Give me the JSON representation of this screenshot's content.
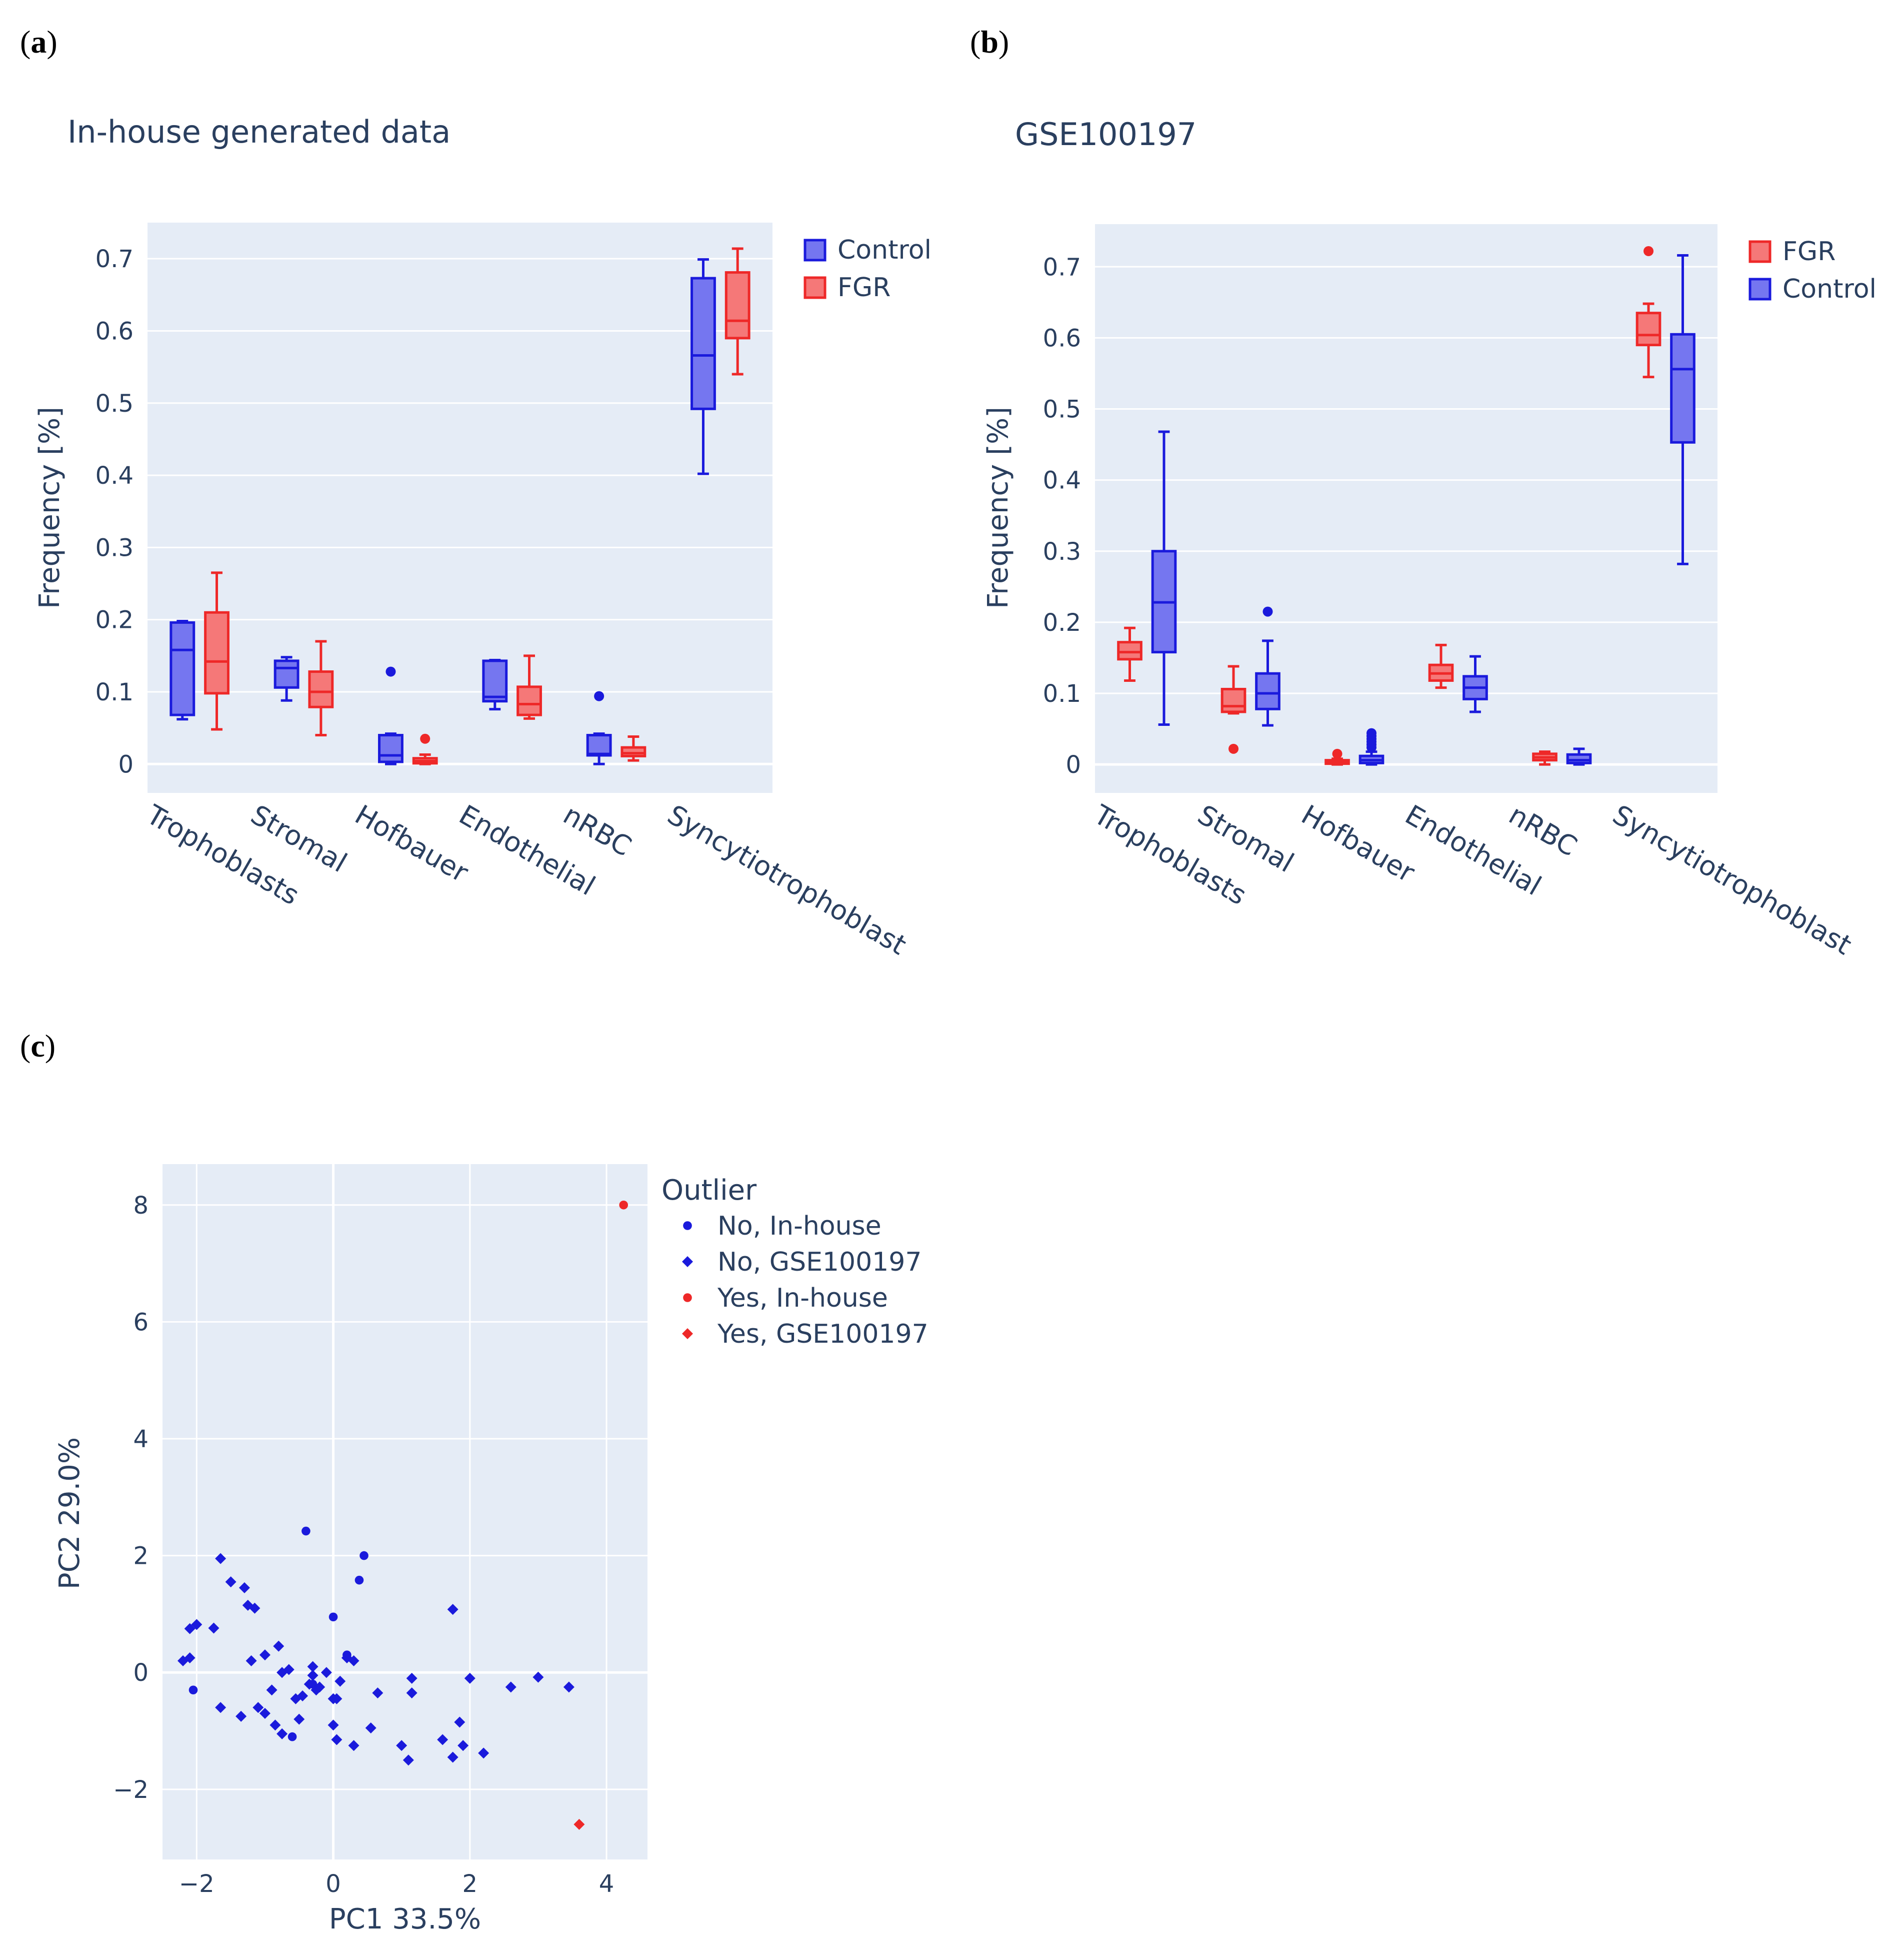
{
  "panels": {
    "a": {
      "label": "a"
    },
    "b": {
      "label": "b"
    },
    "c": {
      "label": "c"
    }
  },
  "colors": {
    "control": "#1a1adc",
    "control_fill": "#7576f0",
    "fgr": "#ee2828",
    "fgr_fill": "#f57878",
    "plot_bg": "#e5ecf6",
    "grid": "#ffffff"
  },
  "chart_data": [
    {
      "id": "a",
      "type": "box",
      "title": "In-house generated data",
      "ylabel": "Frequency [%]",
      "xlabel": "",
      "ylim": [
        -0.04,
        0.75
      ],
      "yticks": [
        0,
        0.1,
        0.2,
        0.3,
        0.4,
        0.5,
        0.6,
        0.7
      ],
      "ytick_labels": [
        "0",
        "0.1",
        "0.2",
        "0.3",
        "0.4",
        "0.5",
        "0.6",
        "0.7"
      ],
      "categories": [
        "Trophoblasts",
        "Stromal",
        "Hofbauer",
        "Endothelial",
        "nRBC",
        "Syncytiotrophoblast"
      ],
      "legend": [
        "Control",
        "FGR"
      ],
      "series": [
        {
          "name": "Control",
          "color_key": "control",
          "boxes": [
            {
              "min": 0.062,
              "q1": 0.068,
              "median": 0.158,
              "q3": 0.196,
              "max": 0.198,
              "outliers": []
            },
            {
              "min": 0.088,
              "q1": 0.106,
              "median": 0.133,
              "q3": 0.143,
              "max": 0.148,
              "outliers": []
            },
            {
              "min": 0.0,
              "q1": 0.003,
              "median": 0.012,
              "q3": 0.04,
              "max": 0.042,
              "outliers": [
                0.128
              ]
            },
            {
              "min": 0.076,
              "q1": 0.087,
              "median": 0.093,
              "q3": 0.143,
              "max": 0.144,
              "outliers": []
            },
            {
              "min": 0.0,
              "q1": 0.012,
              "median": 0.014,
              "q3": 0.04,
              "max": 0.042,
              "outliers": [
                0.094
              ]
            },
            {
              "min": 0.402,
              "q1": 0.492,
              "median": 0.566,
              "q3": 0.673,
              "max": 0.699,
              "outliers": []
            }
          ]
        },
        {
          "name": "FGR",
          "color_key": "fgr",
          "boxes": [
            {
              "min": 0.048,
              "q1": 0.098,
              "median": 0.142,
              "q3": 0.21,
              "max": 0.265,
              "outliers": []
            },
            {
              "min": 0.04,
              "q1": 0.079,
              "median": 0.1,
              "q3": 0.128,
              "max": 0.17,
              "outliers": []
            },
            {
              "min": 0.0,
              "q1": 0.001,
              "median": 0.004,
              "q3": 0.008,
              "max": 0.013,
              "outliers": [
                0.035
              ]
            },
            {
              "min": 0.063,
              "q1": 0.068,
              "median": 0.083,
              "q3": 0.107,
              "max": 0.15,
              "outliers": []
            },
            {
              "min": 0.005,
              "q1": 0.011,
              "median": 0.015,
              "q3": 0.023,
              "max": 0.038,
              "outliers": []
            },
            {
              "min": 0.54,
              "q1": 0.59,
              "median": 0.614,
              "q3": 0.681,
              "max": 0.714,
              "outliers": []
            }
          ]
        }
      ]
    },
    {
      "id": "b",
      "type": "box",
      "title": "GSE100197",
      "ylabel": "Frequency [%]",
      "xlabel": "",
      "ylim": [
        -0.04,
        0.76
      ],
      "yticks": [
        0,
        0.1,
        0.2,
        0.3,
        0.4,
        0.5,
        0.6,
        0.7
      ],
      "ytick_labels": [
        "0",
        "0.1",
        "0.2",
        "0.3",
        "0.4",
        "0.5",
        "0.6",
        "0.7"
      ],
      "categories": [
        "Trophoblasts",
        "Stromal",
        "Hofbauer",
        "Endothelial",
        "nRBC",
        "Syncytiotrophoblast"
      ],
      "legend": [
        "FGR",
        "Control"
      ],
      "series": [
        {
          "name": "FGR",
          "color_key": "fgr",
          "boxes": [
            {
              "min": 0.118,
              "q1": 0.148,
              "median": 0.158,
              "q3": 0.172,
              "max": 0.192,
              "outliers": []
            },
            {
              "min": 0.072,
              "q1": 0.074,
              "median": 0.082,
              "q3": 0.106,
              "max": 0.138,
              "outliers": [
                0.022
              ]
            },
            {
              "min": 0.0,
              "q1": 0.001,
              "median": 0.003,
              "q3": 0.006,
              "max": 0.008,
              "outliers": [
                0.015
              ]
            },
            {
              "min": 0.108,
              "q1": 0.118,
              "median": 0.128,
              "q3": 0.14,
              "max": 0.168,
              "outliers": []
            },
            {
              "min": 0.0,
              "q1": 0.006,
              "median": 0.01,
              "q3": 0.015,
              "max": 0.018,
              "outliers": []
            },
            {
              "min": 0.545,
              "q1": 0.59,
              "median": 0.604,
              "q3": 0.635,
              "max": 0.648,
              "outliers": [
                0.722
              ]
            }
          ]
        },
        {
          "name": "Control",
          "color_key": "control",
          "boxes": [
            {
              "min": 0.056,
              "q1": 0.158,
              "median": 0.228,
              "q3": 0.3,
              "max": 0.468,
              "outliers": []
            },
            {
              "min": 0.055,
              "q1": 0.078,
              "median": 0.1,
              "q3": 0.128,
              "max": 0.174,
              "outliers": [
                0.215
              ]
            },
            {
              "min": 0.0,
              "q1": 0.002,
              "median": 0.006,
              "q3": 0.012,
              "max": 0.018,
              "outliers": [
                0.024,
                0.028,
                0.032,
                0.036,
                0.04,
                0.044
              ]
            },
            {
              "min": 0.074,
              "q1": 0.092,
              "median": 0.108,
              "q3": 0.124,
              "max": 0.152,
              "outliers": []
            },
            {
              "min": 0.0,
              "q1": 0.002,
              "median": 0.006,
              "q3": 0.014,
              "max": 0.022,
              "outliers": []
            },
            {
              "min": 0.282,
              "q1": 0.453,
              "median": 0.556,
              "q3": 0.605,
              "max": 0.716,
              "outliers": []
            }
          ]
        }
      ]
    },
    {
      "id": "c",
      "type": "scatter",
      "title": "",
      "xlabel": "PC1 33.5%",
      "ylabel": "PC2 29.0%",
      "xlim": [
        -2.5,
        4.6
      ],
      "ylim": [
        -3.2,
        8.7
      ],
      "xticks": [
        -2,
        0,
        2,
        4
      ],
      "xtick_labels": [
        "−2",
        "0",
        "2",
        "4"
      ],
      "yticks": [
        -2,
        0,
        2,
        4,
        6,
        8
      ],
      "ytick_labels": [
        "−2",
        "0",
        "2",
        "4",
        "6",
        "8"
      ],
      "legend_title": "Outlier",
      "legend": [
        "No, In-house",
        "No, GSE100197",
        "Yes, In-house",
        "Yes, GSE100197"
      ],
      "series": [
        {
          "name": "No, In-house",
          "color_key": "control",
          "marker": "circle",
          "points": [
            [
              -0.4,
              2.42
            ],
            [
              0.45,
              2.0
            ],
            [
              0.38,
              1.58
            ],
            [
              0.0,
              0.95
            ],
            [
              -2.05,
              -0.3
            ],
            [
              -0.6,
              -1.1
            ],
            [
              0.2,
              0.3
            ],
            [
              -0.3,
              -0.2
            ]
          ]
        },
        {
          "name": "No, GSE100197",
          "color_key": "control",
          "marker": "diamond",
          "points": [
            [
              -1.65,
              1.95
            ],
            [
              -1.5,
              1.55
            ],
            [
              -1.3,
              1.45
            ],
            [
              -1.25,
              1.15
            ],
            [
              -1.15,
              1.1
            ],
            [
              -2.1,
              0.75
            ],
            [
              -2.0,
              0.82
            ],
            [
              -1.75,
              0.76
            ],
            [
              -2.2,
              0.2
            ],
            [
              -2.1,
              0.25
            ],
            [
              -1.2,
              0.2
            ],
            [
              -1.0,
              0.3
            ],
            [
              -0.8,
              0.45
            ],
            [
              -0.75,
              0.0
            ],
            [
              -0.65,
              0.05
            ],
            [
              -0.3,
              0.1
            ],
            [
              -0.3,
              -0.05
            ],
            [
              -0.1,
              0.0
            ],
            [
              -0.25,
              -0.3
            ],
            [
              -0.2,
              -0.25
            ],
            [
              -1.35,
              -0.75
            ],
            [
              -1.1,
              -0.6
            ],
            [
              -1.0,
              -0.7
            ],
            [
              -0.9,
              -0.3
            ],
            [
              -0.85,
              -0.9
            ],
            [
              -0.75,
              -1.05
            ],
            [
              -0.55,
              -0.45
            ],
            [
              -0.5,
              -0.8
            ],
            [
              -0.45,
              -0.4
            ],
            [
              -0.35,
              -0.2
            ],
            [
              0.05,
              -0.45
            ],
            [
              0.1,
              -0.15
            ],
            [
              0.0,
              -0.9
            ],
            [
              0.05,
              -1.15
            ],
            [
              0.3,
              -1.25
            ],
            [
              0.2,
              0.25
            ],
            [
              0.3,
              0.2
            ],
            [
              0.55,
              -0.95
            ],
            [
              0.65,
              -0.35
            ],
            [
              1.0,
              -1.25
            ],
            [
              1.1,
              -1.5
            ],
            [
              1.15,
              -0.1
            ],
            [
              1.15,
              -0.35
            ],
            [
              1.6,
              -1.15
            ],
            [
              1.75,
              -1.45
            ],
            [
              1.75,
              1.08
            ],
            [
              1.85,
              -0.85
            ],
            [
              1.9,
              -1.25
            ],
            [
              2.0,
              -0.1
            ],
            [
              2.2,
              -1.38
            ],
            [
              2.6,
              -0.25
            ],
            [
              3.0,
              -0.08
            ],
            [
              3.45,
              -0.25
            ],
            [
              -1.65,
              -0.6
            ],
            [
              0.0,
              -0.45
            ]
          ]
        },
        {
          "name": "Yes, In-house",
          "color_key": "fgr",
          "marker": "circle",
          "points": [
            [
              4.25,
              8.0
            ]
          ]
        },
        {
          "name": "Yes, GSE100197",
          "color_key": "fgr",
          "marker": "diamond",
          "points": [
            [
              3.6,
              -2.6
            ]
          ]
        }
      ]
    }
  ]
}
